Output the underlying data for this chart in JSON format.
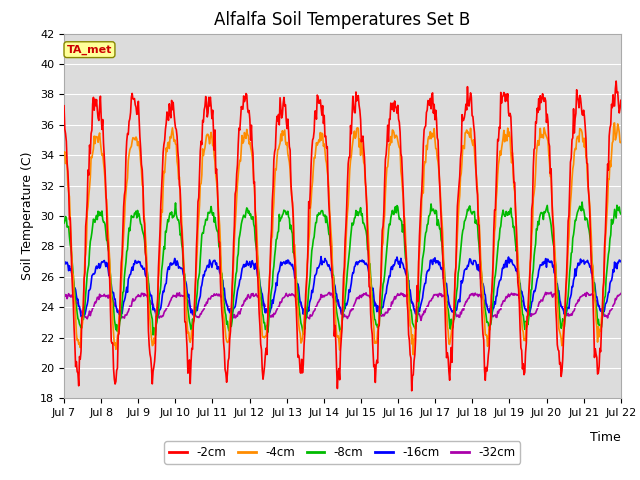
{
  "title": "Alfalfa Soil Temperatures Set B",
  "xlabel": "Time",
  "ylabel": "Soil Temperature (C)",
  "ylim": [
    18,
    42
  ],
  "yticks": [
    18,
    20,
    22,
    24,
    26,
    28,
    30,
    32,
    34,
    36,
    38,
    40,
    42
  ],
  "xtick_labels": [
    "Jul 7",
    "Jul 8",
    "Jul 9",
    "Jul 10",
    "Jul 11",
    "Jul 12",
    "Jul 13",
    "Jul 14",
    "Jul 15",
    "Jul 16",
    "Jul 17",
    "Jul 18",
    "Jul 19",
    "Jul 20",
    "Jul 21",
    "Jul 22"
  ],
  "colors": {
    "-2cm": "#FF0000",
    "-4cm": "#FF8C00",
    "-8cm": "#00BB00",
    "-16cm": "#0000FF",
    "-32cm": "#AA00AA"
  },
  "figure_bg": "#FFFFFF",
  "plot_bg": "#DCDCDC",
  "grid_color": "#FFFFFF",
  "annotation_text": "TA_met",
  "annotation_color": "#CC0000",
  "annotation_bg": "#FFFF99",
  "linewidth": 1.2,
  "n_days": 15,
  "pts_per_day": 48,
  "title_fontsize": 12,
  "label_fontsize": 9,
  "tick_fontsize": 8
}
